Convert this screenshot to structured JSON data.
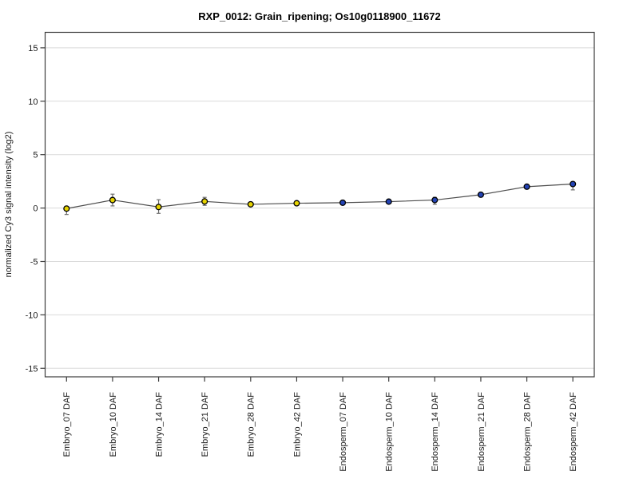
{
  "page": {
    "background": "#ffffff"
  },
  "chart_data": {
    "type": "line",
    "title": "RXP_0012: Grain_ripening; Os10g0118900_11672",
    "xlabel": "",
    "ylabel": "normalized Cy3 signal intensity (log2)",
    "categories": [
      "Embryo_07 DAF",
      "Embryo_10 DAF",
      "Embryo_14 DAF",
      "Embryo_21 DAF",
      "Embryo_28 DAF",
      "Embryo_42 DAF",
      "Endosperm_07 DAF",
      "Endosperm_10 DAF",
      "Endosperm_14 DAF",
      "Endosperm_21 DAF",
      "Endosperm_28 DAF",
      "Endosperm_42 DAF"
    ],
    "values": [
      -0.05,
      0.75,
      0.1,
      0.62,
      0.35,
      0.45,
      0.5,
      0.6,
      0.75,
      1.25,
      2.0,
      2.25
    ],
    "error_low": [
      -0.6,
      0.2,
      -0.5,
      0.25,
      0.2,
      0.3,
      0.3,
      0.45,
      0.35,
      1.1,
      1.85,
      1.7
    ],
    "error_high": [
      0.1,
      1.3,
      0.78,
      1.0,
      0.5,
      0.62,
      0.62,
      0.75,
      1.0,
      1.4,
      2.15,
      2.4
    ],
    "series_groups": [
      {
        "name": "Embryo",
        "color": "#e6d300",
        "points": 6
      },
      {
        "name": "Endosperm",
        "color": "#2343b5",
        "points": 6
      }
    ],
    "point_colors": [
      "#e6d300",
      "#e6d300",
      "#e6d300",
      "#e6d300",
      "#e6d300",
      "#e6d300",
      "#2343b5",
      "#2343b5",
      "#2343b5",
      "#2343b5",
      "#2343b5",
      "#2343b5"
    ],
    "yticks": [
      15,
      10,
      5,
      0,
      -5,
      -10,
      -15
    ],
    "ylim": [
      -15.8,
      16.45
    ],
    "grid": true,
    "legend": "none",
    "line_color": "#4d4d4d",
    "grid_color": "#d9d9d9",
    "axis_color": "#3c3c3c",
    "tick_label_color": "#1a1a1a",
    "error_bar_color": "#6e6e6e",
    "point_stroke": "#000000"
  }
}
